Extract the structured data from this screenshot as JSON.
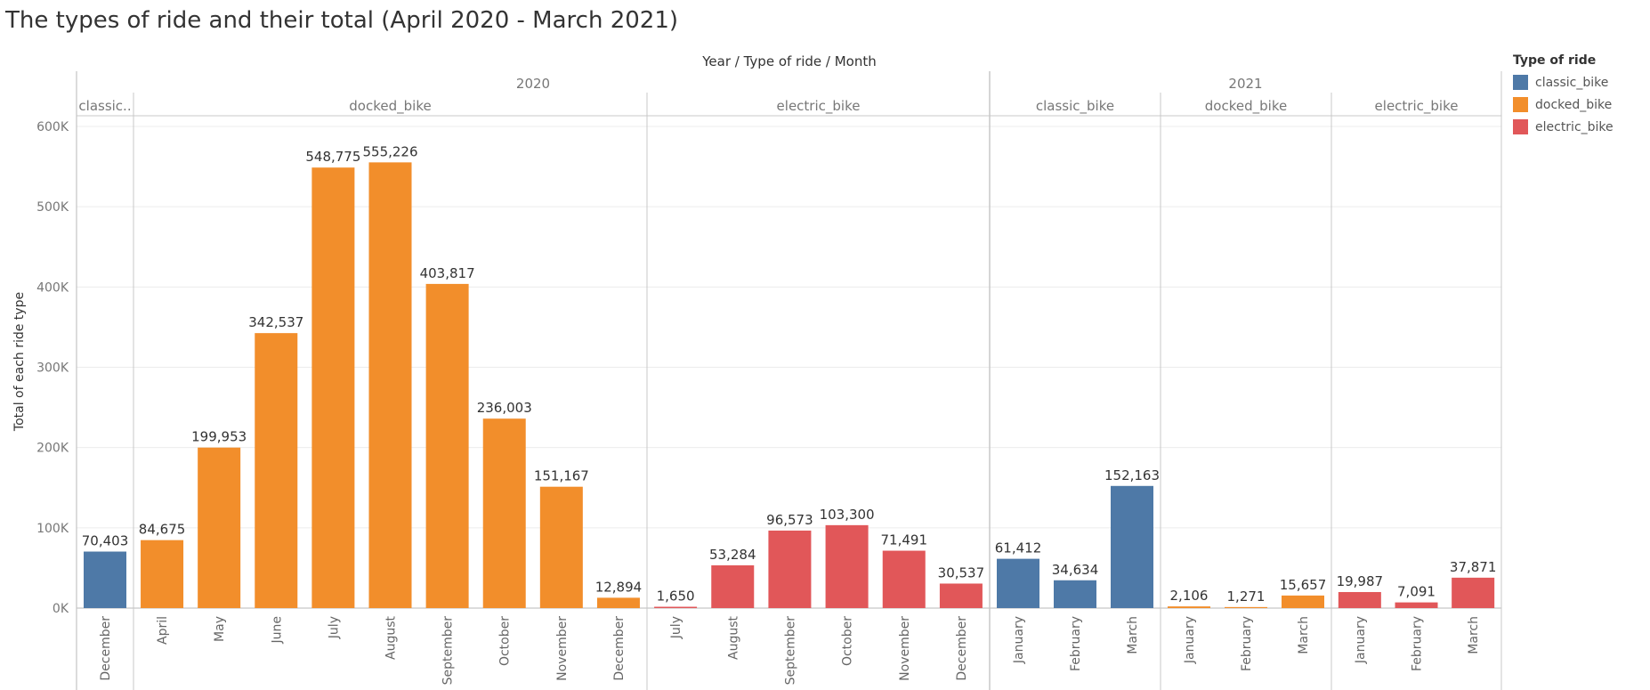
{
  "title": "The types of ride and their total (April 2020 - March 2021)",
  "chart_data": {
    "type": "bar",
    "title": "The types of ride and their total (April 2020 - March 2021)",
    "column_header": "Year  /  Type of ride  /  Month",
    "ylabel": "Total of each ride type",
    "ylim": [
      0,
      600000
    ],
    "yticks": [
      {
        "value": 0,
        "label": "0K"
      },
      {
        "value": 100000,
        "label": "100K"
      },
      {
        "value": 200000,
        "label": "200K"
      },
      {
        "value": 300000,
        "label": "300K"
      },
      {
        "value": 400000,
        "label": "400K"
      },
      {
        "value": 500000,
        "label": "500K"
      },
      {
        "value": 600000,
        "label": "600K"
      }
    ],
    "grid": true,
    "legend_position": "right",
    "legend": {
      "title": "Type of ride",
      "items": [
        {
          "name": "classic_bike",
          "color": "#4e79a7"
        },
        {
          "name": "docked_bike",
          "color": "#f28e2b"
        },
        {
          "name": "electric_bike",
          "color": "#e15759"
        }
      ]
    },
    "years": [
      {
        "label": "2020"
      },
      {
        "label": "2021"
      }
    ],
    "groups": [
      {
        "year": "2020",
        "type": "classic_bike",
        "label": "classic..",
        "color": "#4e79a7",
        "bars": [
          {
            "month": "December",
            "value": 70403,
            "label": "70,403"
          }
        ]
      },
      {
        "year": "2020",
        "type": "docked_bike",
        "label": "docked_bike",
        "color": "#f28e2b",
        "bars": [
          {
            "month": "April",
            "value": 84675,
            "label": "84,675"
          },
          {
            "month": "May",
            "value": 199953,
            "label": "199,953"
          },
          {
            "month": "June",
            "value": 342537,
            "label": "342,537"
          },
          {
            "month": "July",
            "value": 548775,
            "label": "548,775"
          },
          {
            "month": "August",
            "value": 555226,
            "label": "555,226"
          },
          {
            "month": "September",
            "value": 403817,
            "label": "403,817"
          },
          {
            "month": "October",
            "value": 236003,
            "label": "236,003"
          },
          {
            "month": "November",
            "value": 151167,
            "label": "151,167"
          },
          {
            "month": "December",
            "value": 12894,
            "label": "12,894"
          }
        ]
      },
      {
        "year": "2020",
        "type": "electric_bike",
        "label": "electric_bike",
        "color": "#e15759",
        "bars": [
          {
            "month": "July",
            "value": 1650,
            "label": "1,650"
          },
          {
            "month": "August",
            "value": 53284,
            "label": "53,284"
          },
          {
            "month": "September",
            "value": 96573,
            "label": "96,573"
          },
          {
            "month": "October",
            "value": 103300,
            "label": "103,300"
          },
          {
            "month": "November",
            "value": 71491,
            "label": "71,491"
          },
          {
            "month": "December",
            "value": 30537,
            "label": "30,537"
          }
        ]
      },
      {
        "year": "2021",
        "type": "classic_bike",
        "label": "classic_bike",
        "color": "#4e79a7",
        "bars": [
          {
            "month": "January",
            "value": 61412,
            "label": "61,412"
          },
          {
            "month": "February",
            "value": 34634,
            "label": "34,634"
          },
          {
            "month": "March",
            "value": 152163,
            "label": "152,163"
          }
        ]
      },
      {
        "year": "2021",
        "type": "docked_bike",
        "label": "docked_bike",
        "color": "#f28e2b",
        "bars": [
          {
            "month": "January",
            "value": 2106,
            "label": "2,106"
          },
          {
            "month": "February",
            "value": 1271,
            "label": "1,271"
          },
          {
            "month": "March",
            "value": 15657,
            "label": "15,657"
          }
        ]
      },
      {
        "year": "2021",
        "type": "electric_bike",
        "label": "electric_bike",
        "color": "#e15759",
        "bars": [
          {
            "month": "January",
            "value": 19987,
            "label": "19,987"
          },
          {
            "month": "February",
            "value": 7091,
            "label": "7,091"
          },
          {
            "month": "March",
            "value": 37871,
            "label": "37,871"
          }
        ]
      }
    ]
  }
}
